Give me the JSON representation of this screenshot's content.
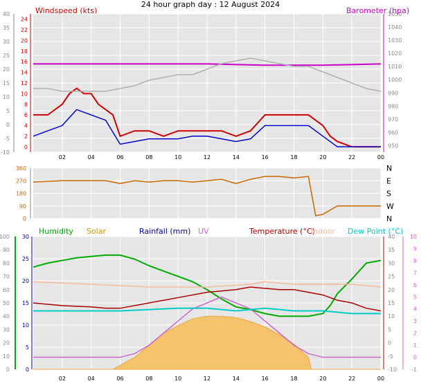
{
  "page_title": "24 hour graph day : 12 August 2024",
  "colors": {
    "windspeed": "#cc0000",
    "barometer": "#cc00cc",
    "humidity": "#00aa00",
    "solar": "#cc9900",
    "rainfall": "#000099",
    "uv": "#cc66cc",
    "temperature": "#aa0000",
    "indoor": "#f4b89a",
    "dewpoint": "#00cccc",
    "winddir": "#cc6600",
    "panel_bg": "#e6e6e6"
  },
  "chart_data": [
    {
      "type": "line",
      "legend": [
        "Windspeed (kts)",
        "Barometer (hpa)"
      ],
      "x_ticks": [
        "02",
        "04",
        "06",
        "08",
        "10",
        "12",
        "14",
        "16",
        "18",
        "20",
        "22",
        "00"
      ],
      "x_range_hours": [
        0,
        24
      ],
      "left_axis_outer": {
        "ticks": [
          -10,
          -5,
          0,
          5,
          10,
          15,
          20,
          25,
          30,
          35,
          40
        ],
        "range": [
          -10,
          40
        ]
      },
      "left_axis_inner": {
        "ticks": [
          0,
          2,
          4,
          6,
          8,
          10,
          12,
          14,
          16,
          18,
          20,
          22,
          24
        ],
        "range": [
          -1,
          25
        ]
      },
      "right_axis": {
        "ticks": [
          950,
          960,
          970,
          980,
          990,
          1000,
          1010,
          1020,
          1030,
          1040,
          1050
        ],
        "range": [
          945,
          1050
        ]
      },
      "series": [
        {
          "name": "Barometer (hpa)",
          "axis": "right",
          "hours": [
            0,
            6,
            12,
            16,
            20,
            24
          ],
          "values": [
            1012,
            1012,
            1012,
            1011,
            1011,
            1012
          ]
        },
        {
          "name": "Windspeed (kts)",
          "axis": "inner",
          "hours": [
            0,
            1,
            2,
            2.5,
            3,
            3.5,
            4,
            4.5,
            5,
            5.5,
            6,
            7,
            8,
            9,
            10,
            11,
            12,
            13,
            14,
            15,
            16,
            17,
            18,
            19,
            20,
            20.5,
            21,
            21.5,
            22,
            24
          ],
          "values": [
            6,
            6,
            8,
            10,
            11,
            10,
            10,
            8,
            7,
            6,
            2,
            3,
            3,
            2,
            3,
            3,
            3,
            3,
            2,
            3,
            6,
            6,
            6,
            6,
            4,
            2,
            1,
            0.5,
            0,
            0
          ]
        },
        {
          "name": "Windspeed avg",
          "axis": "inner",
          "hours": [
            0,
            1,
            2,
            3,
            4,
            5,
            6,
            7,
            8,
            9,
            10,
            11,
            12,
            13,
            14,
            15,
            16,
            17,
            18,
            19,
            20,
            21,
            22,
            24
          ],
          "values": [
            2,
            3,
            4,
            7,
            6,
            5,
            0.5,
            1,
            1.5,
            1.5,
            1.5,
            2,
            2,
            1.5,
            1,
            1.5,
            4,
            4,
            4,
            4,
            2,
            0,
            0,
            0
          ]
        },
        {
          "name": "Gust grey",
          "axis": "outer",
          "hours": [
            0,
            1,
            2,
            3,
            4,
            5,
            6,
            7,
            8,
            9,
            10,
            11,
            12,
            13,
            14,
            15,
            16,
            17,
            18,
            19,
            20,
            21,
            22,
            23,
            24
          ],
          "values": [
            13,
            13,
            12,
            12,
            12,
            12,
            13,
            14,
            16,
            17,
            18,
            18,
            20,
            22,
            23,
            24,
            23,
            22,
            21,
            21,
            19,
            17,
            15,
            13,
            12
          ]
        }
      ]
    },
    {
      "type": "line",
      "legend_right": [
        "N",
        "W",
        "S",
        "E",
        "N"
      ],
      "left_axis": {
        "ticks": [
          0,
          90,
          180,
          270,
          360
        ],
        "range": [
          0,
          360
        ]
      },
      "x_range_hours": [
        0,
        24
      ],
      "series": [
        {
          "name": "Wind direction",
          "hours": [
            0,
            2,
            4,
            5,
            5.5,
            6,
            7,
            8,
            9,
            10,
            11,
            12,
            13,
            14,
            15,
            16,
            17,
            18,
            19,
            19.5,
            20,
            21,
            22,
            24
          ],
          "values": [
            260,
            270,
            270,
            270,
            260,
            250,
            270,
            260,
            270,
            270,
            260,
            270,
            280,
            250,
            280,
            300,
            300,
            290,
            300,
            20,
            30,
            90,
            90,
            90
          ]
        }
      ]
    },
    {
      "type": "area",
      "legend": [
        "Humidity",
        "Solar",
        "Rainfall (mm)",
        "UV",
        "Temperature (°C)",
        "Indoor",
        "Dew Point (°C)"
      ],
      "x_ticks": [
        "02",
        "04",
        "06",
        "08",
        "10",
        "12",
        "14",
        "16",
        "18",
        "20",
        "22",
        "00"
      ],
      "x_range_hours": [
        0,
        24
      ],
      "axis_humidity": {
        "ticks": [
          0,
          10,
          20,
          30,
          40,
          50,
          60,
          70,
          80,
          90,
          100
        ],
        "range": [
          0,
          100
        ]
      },
      "axis_rain": {
        "ticks": [
          0,
          5,
          10,
          15,
          20,
          25,
          30
        ],
        "range": [
          0,
          30
        ]
      },
      "axis_temp": {
        "ticks": [
          -10,
          -5,
          0,
          5,
          10,
          15,
          20,
          25,
          30,
          35,
          40
        ],
        "range": [
          -10,
          40
        ]
      },
      "axis_uv": {
        "ticks": [
          -1,
          0,
          1,
          2,
          3,
          4,
          5,
          6,
          7,
          8,
          9,
          10
        ],
        "range": [
          -1,
          10
        ]
      },
      "series": [
        {
          "name": "Humidity",
          "axis": "humidity",
          "hours": [
            0,
            1,
            2,
            3,
            4,
            5,
            6,
            7,
            8,
            9,
            10,
            11,
            12,
            13,
            14,
            15,
            16,
            17,
            18,
            19,
            20,
            20.5,
            21,
            22,
            23,
            24
          ],
          "values": [
            77,
            80,
            82,
            84,
            85,
            86,
            86,
            83,
            78,
            74,
            70,
            66,
            60,
            53,
            47,
            45,
            42,
            40,
            40,
            40,
            42,
            48,
            57,
            68,
            80,
            82
          ]
        },
        {
          "name": "Solar",
          "axis": "humidity",
          "hours": [
            0,
            5.5,
            6,
            7,
            8,
            9,
            10,
            11,
            12,
            13,
            14,
            15,
            16,
            17,
            18,
            19,
            19.2,
            24
          ],
          "values": [
            0,
            0,
            3,
            9,
            18,
            27,
            33,
            38,
            40,
            40,
            39,
            36,
            32,
            26,
            19,
            9,
            0,
            0
          ]
        },
        {
          "name": "UV",
          "axis": "uv",
          "hours": [
            0,
            6,
            7,
            8,
            9,
            10,
            11,
            12,
            13,
            14,
            15,
            16,
            17,
            18,
            19,
            20,
            24
          ],
          "values": [
            0,
            0,
            0.3,
            1,
            2,
            3,
            4,
            4.5,
            5,
            4.5,
            4,
            3,
            2,
            1,
            0.3,
            0,
            0
          ]
        },
        {
          "name": "Temperature (°C)",
          "axis": "temp",
          "hours": [
            0,
            2,
            4,
            5,
            6,
            8,
            10,
            12,
            14,
            15,
            16,
            17,
            18,
            19,
            20,
            21,
            22,
            23,
            24
          ],
          "values": [
            15,
            14,
            13.5,
            13,
            13,
            15,
            17,
            19,
            20,
            21,
            20.5,
            20,
            20,
            19,
            18,
            16,
            15,
            13,
            12
          ]
        },
        {
          "name": "Indoor",
          "axis": "temp",
          "hours": [
            0,
            4,
            8,
            12,
            15,
            16,
            18,
            20,
            22,
            24
          ],
          "values": [
            23,
            22,
            21,
            21,
            22,
            23,
            22,
            22,
            22,
            21
          ]
        },
        {
          "name": "Dew Point (°C)",
          "axis": "temp",
          "hours": [
            0,
            2,
            4,
            6,
            8,
            10,
            12,
            14,
            16,
            18,
            20,
            22,
            24
          ],
          "values": [
            12,
            12,
            12,
            12,
            12.5,
            13,
            13,
            12,
            13,
            12,
            12,
            11,
            11
          ]
        }
      ]
    }
  ]
}
